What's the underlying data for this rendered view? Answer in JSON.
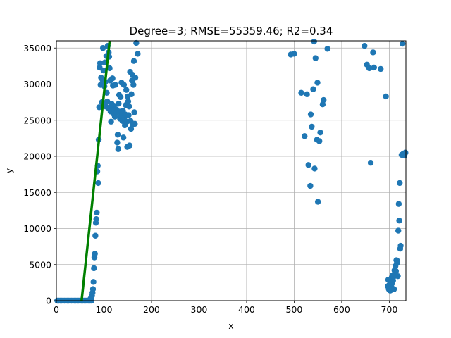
{
  "chart_data": {
    "type": "scatter",
    "title": "Degree=3; RMSE=55359.46; R2=0.34",
    "xlabel": "x",
    "ylabel": "y",
    "xlim": [
      0,
      735
    ],
    "ylim": [
      0,
      36000
    ],
    "xticks": [
      0,
      100,
      200,
      300,
      400,
      500,
      600,
      700
    ],
    "yticks": [
      0,
      5000,
      10000,
      15000,
      20000,
      25000,
      30000,
      35000
    ],
    "grid": true,
    "colors": {
      "points": "#1f77b4",
      "fit": "#008000",
      "grid": "#b0b0b0"
    },
    "series": [
      {
        "kind": "scatter",
        "points": [
          [
            2,
            0
          ],
          [
            5,
            0
          ],
          [
            8,
            0
          ],
          [
            11,
            0
          ],
          [
            14,
            0
          ],
          [
            17,
            0
          ],
          [
            20,
            0
          ],
          [
            23,
            0
          ],
          [
            26,
            0
          ],
          [
            29,
            0
          ],
          [
            32,
            0
          ],
          [
            35,
            0
          ],
          [
            38,
            0
          ],
          [
            41,
            0
          ],
          [
            44,
            0
          ],
          [
            47,
            0
          ],
          [
            50,
            0
          ],
          [
            53,
            0
          ],
          [
            56,
            0
          ],
          [
            59,
            0
          ],
          [
            62,
            0
          ],
          [
            65,
            0
          ],
          [
            68,
            0
          ],
          [
            71,
            0
          ],
          [
            74,
            0
          ],
          [
            72,
            300
          ],
          [
            74,
            500
          ],
          [
            75,
            700
          ],
          [
            76,
            1100
          ],
          [
            77,
            1600
          ],
          [
            78,
            2600
          ],
          [
            79,
            4500
          ],
          [
            80,
            6000
          ],
          [
            81,
            6500
          ],
          [
            82,
            9000
          ],
          [
            83,
            10800
          ],
          [
            84,
            11300
          ],
          [
            85,
            12200
          ],
          [
            86,
            17900
          ],
          [
            87,
            18700
          ],
          [
            88,
            16300
          ],
          [
            89,
            22300
          ],
          [
            90,
            26800
          ],
          [
            91,
            32300
          ],
          [
            92,
            32900
          ],
          [
            93,
            29900
          ],
          [
            94,
            30900
          ],
          [
            96,
            27500
          ],
          [
            97,
            30600
          ],
          [
            98,
            35000
          ],
          [
            99,
            31900
          ],
          [
            100,
            27000
          ],
          [
            101,
            29700
          ],
          [
            102,
            33000
          ],
          [
            103,
            30300
          ],
          [
            104,
            26900
          ],
          [
            105,
            33900
          ],
          [
            106,
            28800
          ],
          [
            107,
            27600
          ],
          [
            108,
            35300
          ],
          [
            109,
            26700
          ],
          [
            110,
            34400
          ],
          [
            111,
            33800
          ],
          [
            112,
            32200
          ],
          [
            113,
            30500
          ],
          [
            114,
            26200
          ],
          [
            115,
            24800
          ],
          [
            116,
            27300
          ],
          [
            117,
            26600
          ],
          [
            118,
            30800
          ],
          [
            119,
            29800
          ],
          [
            120,
            25900
          ],
          [
            121,
            27000
          ],
          [
            122,
            26500
          ],
          [
            123,
            25500
          ],
          [
            124,
            29900
          ],
          [
            125,
            26200
          ],
          [
            126,
            26500
          ],
          [
            127,
            26100
          ],
          [
            128,
            21900
          ],
          [
            129,
            23000
          ],
          [
            130,
            21000
          ],
          [
            131,
            27300
          ],
          [
            132,
            28500
          ],
          [
            133,
            26200
          ],
          [
            134,
            25200
          ],
          [
            135,
            28200
          ],
          [
            136,
            25600
          ],
          [
            137,
            30200
          ],
          [
            138,
            26000
          ],
          [
            139,
            24900
          ],
          [
            140,
            26300
          ],
          [
            141,
            22600
          ],
          [
            142,
            29900
          ],
          [
            143,
            25400
          ],
          [
            144,
            24300
          ],
          [
            145,
            25800
          ],
          [
            146,
            27100
          ],
          [
            147,
            29200
          ],
          [
            148,
            24800
          ],
          [
            149,
            21300
          ],
          [
            150,
            28300
          ],
          [
            151,
            27600
          ],
          [
            152,
            25700
          ],
          [
            153,
            26900
          ],
          [
            154,
            21500
          ],
          [
            155,
            31700
          ],
          [
            156,
            24900
          ],
          [
            157,
            23800
          ],
          [
            158,
            28600
          ],
          [
            159,
            30500
          ],
          [
            160,
            31300
          ],
          [
            161,
            24400
          ],
          [
            162,
            29900
          ],
          [
            163,
            33200
          ],
          [
            164,
            26100
          ],
          [
            165,
            24500
          ],
          [
            166,
            30900
          ],
          [
            168,
            35700
          ],
          [
            171,
            34200
          ],
          [
            493,
            34100
          ],
          [
            500,
            34200
          ],
          [
            515,
            28800
          ],
          [
            522,
            22800
          ],
          [
            527,
            28600
          ],
          [
            530,
            18800
          ],
          [
            534,
            15900
          ],
          [
            535,
            25800
          ],
          [
            537,
            24100
          ],
          [
            540,
            29300
          ],
          [
            542,
            35900
          ],
          [
            543,
            18300
          ],
          [
            545,
            33600
          ],
          [
            548,
            22300
          ],
          [
            549,
            30200
          ],
          [
            550,
            13700
          ],
          [
            553,
            22100
          ],
          [
            555,
            23300
          ],
          [
            560,
            27200
          ],
          [
            562,
            27800
          ],
          [
            570,
            34900
          ],
          [
            648,
            35300
          ],
          [
            653,
            32700
          ],
          [
            658,
            32200
          ],
          [
            661,
            19100
          ],
          [
            666,
            34400
          ],
          [
            668,
            32300
          ],
          [
            682,
            32100
          ],
          [
            693,
            28300
          ],
          [
            697,
            2000
          ],
          [
            698,
            2900
          ],
          [
            699,
            1600
          ],
          [
            700,
            2200
          ],
          [
            701,
            1800
          ],
          [
            702,
            1400
          ],
          [
            703,
            2600
          ],
          [
            704,
            1900
          ],
          [
            705,
            3200
          ],
          [
            706,
            2400
          ],
          [
            707,
            3500
          ],
          [
            708,
            2800
          ],
          [
            709,
            3300
          ],
          [
            710,
            1600
          ],
          [
            711,
            4200
          ],
          [
            712,
            3900
          ],
          [
            713,
            4800
          ],
          [
            714,
            4100
          ],
          [
            715,
            5600
          ],
          [
            716,
            5200
          ],
          [
            717,
            5500
          ],
          [
            718,
            3400
          ],
          [
            719,
            9700
          ],
          [
            720,
            13400
          ],
          [
            721,
            11100
          ],
          [
            722,
            16300
          ],
          [
            723,
            7200
          ],
          [
            724,
            7600
          ],
          [
            726,
            20200
          ],
          [
            728,
            35600
          ],
          [
            730,
            20400
          ],
          [
            732,
            20100
          ],
          [
            734,
            20500
          ]
        ]
      },
      {
        "kind": "line",
        "points": [
          [
            53,
            0
          ],
          [
            112,
            36000
          ]
        ]
      }
    ]
  }
}
